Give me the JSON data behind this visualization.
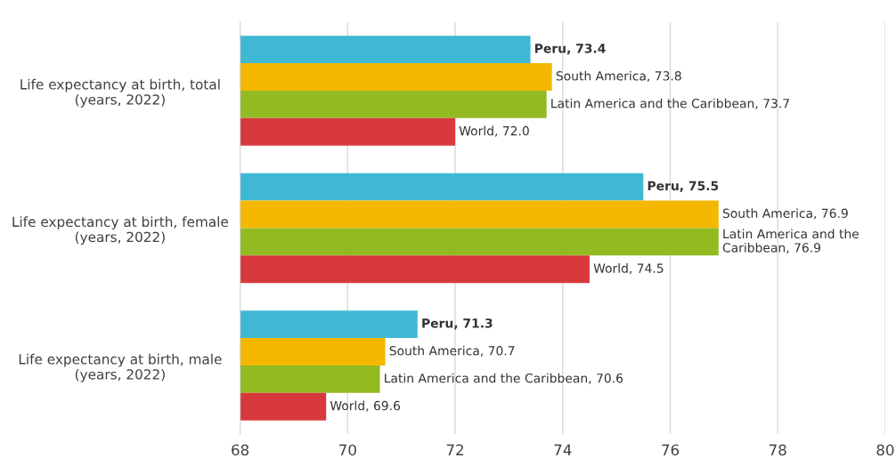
{
  "chart_data": {
    "type": "bar",
    "orientation": "horizontal",
    "categories": [
      "Life expectancy at birth, total\n(years, 2022)",
      "Life expectancy at birth, female\n(years, 2022)",
      "Life expectancy at birth, male\n(years, 2022)"
    ],
    "series": [
      {
        "color": "#3fb8d4",
        "values": [
          73.4,
          75.5,
          71.3
        ],
        "value_labels": [
          "Peru, 73.4",
          "Peru, 75.5",
          "Peru, 71.3"
        ]
      },
      {
        "color": "#f5b800",
        "values": [
          73.8,
          76.9,
          70.7
        ],
        "value_labels": [
          "South America, 73.8",
          "South America, 76.9",
          "South America, 70.7"
        ]
      },
      {
        "color": "#92bb22",
        "values": [
          73.7,
          76.9,
          70.6
        ],
        "value_labels": [
          "Latin America and the Caribbean, 73.7",
          "Latin America and the\nCaribbean, 76.9",
          "Latin America and the Caribbean, 70.6"
        ]
      },
      {
        "color": "#d8393c",
        "values": [
          72.0,
          74.5,
          69.6
        ],
        "value_labels": [
          "World, 72.0",
          "World, 74.5",
          "World, 69.6"
        ]
      }
    ],
    "xlim": [
      68,
      80
    ],
    "xticks": [
      68,
      70,
      72,
      74,
      76,
      78,
      80
    ],
    "grid": "x",
    "legend": false
  }
}
